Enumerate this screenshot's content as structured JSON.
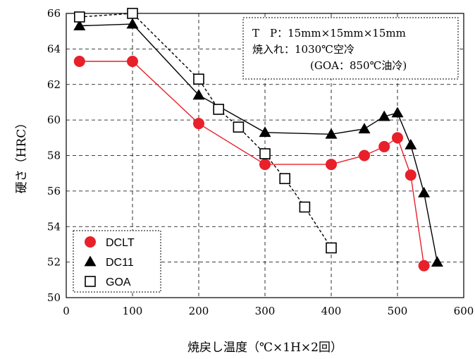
{
  "chart_data": {
    "type": "line",
    "xlabel": "焼戻し温度（℃×1H×2回）",
    "ylabel": "硬さ（HRC）",
    "xlim": [
      0,
      600
    ],
    "ylim": [
      50,
      66
    ],
    "xticks": [
      "0",
      "100",
      "200",
      "300",
      "400",
      "500",
      "600"
    ],
    "yticks": [
      "50",
      "52",
      "54",
      "56",
      "58",
      "60",
      "62",
      "64",
      "66"
    ],
    "grid": "dashed",
    "legend_position": "bottom-left",
    "annotation_lines": [
      "T　P：15mm×15mm×15mm",
      "焼入れ：1030℃空冷",
      "(GOA：850℃油冷)"
    ],
    "series": [
      {
        "name": "DCLT",
        "marker": "filled-circle",
        "color": "#e8202a",
        "line": "solid",
        "x": [
          20,
          100,
          200,
          300,
          400,
          450,
          480,
          500,
          520,
          540
        ],
        "y": [
          63.3,
          63.3,
          59.8,
          57.5,
          57.5,
          58.0,
          58.5,
          59.0,
          56.9,
          51.8
        ]
      },
      {
        "name": "DC11",
        "marker": "filled-triangle",
        "color": "#000000",
        "line": "solid",
        "x": [
          20,
          100,
          200,
          300,
          400,
          450,
          480,
          500,
          520,
          540,
          560
        ],
        "y": [
          65.3,
          65.4,
          61.4,
          59.3,
          59.2,
          59.5,
          60.2,
          60.4,
          58.6,
          55.9,
          52.0
        ]
      },
      {
        "name": "GOA",
        "marker": "open-square",
        "color": "#000000",
        "line": "dashed",
        "x": [
          20,
          100,
          200,
          230,
          260,
          300,
          330,
          360,
          400
        ],
        "y": [
          65.8,
          66.0,
          62.3,
          60.6,
          59.6,
          58.1,
          56.7,
          55.1,
          52.8
        ]
      }
    ]
  }
}
